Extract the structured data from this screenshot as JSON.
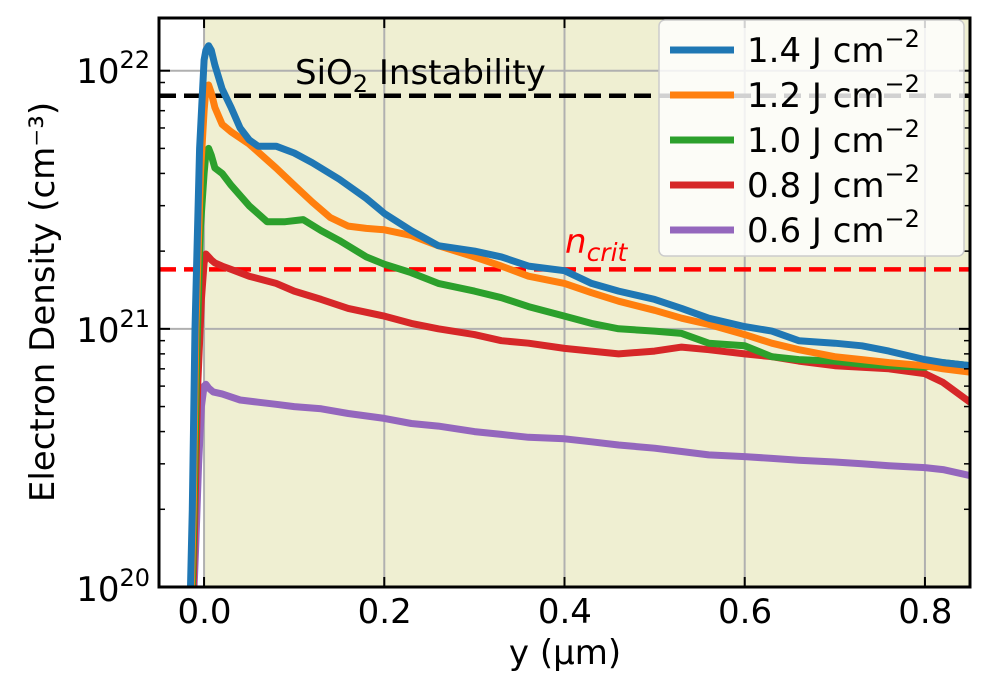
{
  "chart_data": {
    "type": "line",
    "xlabel": "y (µm)",
    "ylabel": "Electron Density (cm⁻³)",
    "xlim": [
      -0.05,
      0.85
    ],
    "ylim": [
      1e+20,
      1.6e+22
    ],
    "yscale": "log",
    "grid": true,
    "legend_position": "top-right",
    "x_ticks": [
      "0.0",
      "0.2",
      "0.4",
      "0.6",
      "0.8"
    ],
    "y_ticks": [
      {
        "base": "10",
        "exp": "20"
      },
      {
        "base": "10",
        "exp": "21"
      },
      {
        "base": "10",
        "exp": "22"
      }
    ],
    "shaded_region": {
      "x_from": 0.0,
      "x_to": 0.85,
      "color": "#efefd2"
    },
    "reference_lines": [
      {
        "y": 8e+21,
        "color": "#000000",
        "label": "SiO₂ Instability",
        "label_base": "SiO",
        "label_sub": "2",
        "label_rest": " Instability"
      },
      {
        "y": 1.7e+21,
        "color": "#ff0000",
        "label": "n_crit",
        "label_base": "n",
        "label_sub": "crit"
      }
    ],
    "series": [
      {
        "name": "1.4 J cm⁻²",
        "legend_base": "1.4 J cm",
        "legend_exp": "−2",
        "color": "#1f77b4",
        "x": [
          -0.015,
          -0.015,
          -0.013,
          -0.01,
          -0.005,
          0.0,
          0.002,
          0.005,
          0.008,
          0.012,
          0.02,
          0.03,
          0.04,
          0.05,
          0.06,
          0.08,
          0.1,
          0.12,
          0.15,
          0.18,
          0.2,
          0.23,
          0.26,
          0.3,
          0.33,
          0.36,
          0.4,
          0.43,
          0.46,
          0.5,
          0.53,
          0.56,
          0.6,
          0.63,
          0.66,
          0.7,
          0.73,
          0.76,
          0.8,
          0.82,
          0.85
        ],
        "y": [
          1e+20,
          1e+20,
          2e+20,
          1e+21,
          5e+21,
          1.1e+22,
          1.2e+22,
          1.25e+22,
          1.2e+22,
          1.05e+22,
          8.5e+21,
          7.2e+21,
          6e+21,
          5.4e+21,
          5.1e+21,
          5.1e+21,
          4.8e+21,
          4.4e+21,
          3.8e+21,
          3.2e+21,
          2.8e+21,
          2.4e+21,
          2.1e+21,
          2e+21,
          1.9e+21,
          1.75e+21,
          1.68e+21,
          1.5e+21,
          1.4e+21,
          1.3e+21,
          1.2e+21,
          1.1e+21,
          1.02e+21,
          9.8e+20,
          9e+20,
          8.8e+20,
          8.6e+20,
          8.2e+20,
          7.6e+20,
          7.4e+20,
          7.2e+20
        ]
      },
      {
        "name": "1.2 J cm⁻²",
        "legend_base": "1.2 J cm",
        "legend_exp": "−2",
        "color": "#ff7f0e",
        "x": [
          -0.014,
          -0.014,
          -0.012,
          -0.009,
          -0.004,
          0.0,
          0.002,
          0.005,
          0.008,
          0.012,
          0.02,
          0.03,
          0.05,
          0.08,
          0.1,
          0.12,
          0.14,
          0.16,
          0.18,
          0.2,
          0.23,
          0.26,
          0.3,
          0.33,
          0.36,
          0.4,
          0.43,
          0.46,
          0.5,
          0.53,
          0.56,
          0.6,
          0.63,
          0.66,
          0.7,
          0.73,
          0.76,
          0.8,
          0.82,
          0.85
        ],
        "y": [
          1e+20,
          1e+20,
          2e+20,
          1e+21,
          4e+21,
          7e+21,
          8.5e+21,
          8.8e+21,
          8.2e+21,
          7.2e+21,
          6.2e+21,
          5.8e+21,
          5.2e+21,
          4.2e+21,
          3.6e+21,
          3.1e+21,
          2.7e+21,
          2.5e+21,
          2.45e+21,
          2.42e+21,
          2.3e+21,
          2.1e+21,
          1.9e+21,
          1.75e+21,
          1.6e+21,
          1.5e+21,
          1.38e+21,
          1.28e+21,
          1.18e+21,
          1.1e+21,
          1.04e+21,
          9.5e+20,
          8.8e+20,
          8.3e+20,
          7.8e+20,
          7.6e+20,
          7.4e+20,
          7.2e+20,
          7e+20,
          6.8e+20
        ]
      },
      {
        "name": "1.0 J cm⁻²",
        "legend_base": "1.0 J cm",
        "legend_exp": "−2",
        "color": "#2ca02c",
        "x": [
          -0.013,
          -0.013,
          -0.011,
          -0.008,
          -0.004,
          0.0,
          0.002,
          0.005,
          0.008,
          0.012,
          0.02,
          0.03,
          0.05,
          0.07,
          0.09,
          0.11,
          0.13,
          0.15,
          0.18,
          0.2,
          0.23,
          0.26,
          0.3,
          0.33,
          0.36,
          0.4,
          0.43,
          0.46,
          0.5,
          0.53,
          0.56,
          0.6,
          0.63,
          0.66,
          0.7,
          0.73,
          0.76,
          0.8,
          0.82,
          0.85
        ],
        "y": [
          1e+20,
          1e+20,
          2e+20,
          8e+20,
          2.5e+21,
          4e+21,
          4.8e+21,
          5e+21,
          4.7e+21,
          4.2e+21,
          4e+21,
          3.6e+21,
          3e+21,
          2.6e+21,
          2.6e+21,
          2.65e+21,
          2.4e+21,
          2.2e+21,
          1.9e+21,
          1.78e+21,
          1.65e+21,
          1.5e+21,
          1.4e+21,
          1.32e+21,
          1.22e+21,
          1.12e+21,
          1.05e+21,
          1e+21,
          9.8e+20,
          9.6e+20,
          8.8e+20,
          8.6e+20,
          7.8e+20,
          7.6e+20,
          7.5e+20,
          7.3e+20,
          7.2e+20,
          7.1e+20,
          7.4e+20,
          7.2e+20
        ]
      },
      {
        "name": "0.8 J cm⁻²",
        "legend_base": "0.8 J cm",
        "legend_exp": "−2",
        "color": "#d62728",
        "x": [
          -0.012,
          -0.012,
          -0.01,
          -0.007,
          -0.003,
          0.0,
          0.002,
          0.005,
          0.008,
          0.012,
          0.02,
          0.03,
          0.05,
          0.08,
          0.1,
          0.13,
          0.16,
          0.2,
          0.23,
          0.26,
          0.3,
          0.33,
          0.36,
          0.4,
          0.43,
          0.46,
          0.5,
          0.53,
          0.56,
          0.6,
          0.63,
          0.66,
          0.7,
          0.73,
          0.76,
          0.8,
          0.82,
          0.85
        ],
        "y": [
          1e+20,
          1e+20,
          2e+20,
          6e+20,
          1.3e+21,
          1.8e+21,
          1.95e+21,
          1.9e+21,
          1.85e+21,
          1.8e+21,
          1.75e+21,
          1.7e+21,
          1.6e+21,
          1.5e+21,
          1.4e+21,
          1.3e+21,
          1.2e+21,
          1.12e+21,
          1.05e+21,
          1e+21,
          9.5e+20,
          9e+20,
          8.8e+20,
          8.4e+20,
          8.2e+20,
          8e+20,
          8.2e+20,
          8.5e+20,
          8.3e+20,
          8e+20,
          7.8e+20,
          7.5e+20,
          7.2e+20,
          7.1e+20,
          7e+20,
          6.7e+20,
          6.2e+20,
          5.2e+20
        ]
      },
      {
        "name": "0.6 J cm⁻²",
        "legend_base": "0.6 J cm",
        "legend_exp": "−2",
        "color": "#9467bd",
        "x": [
          -0.011,
          -0.011,
          -0.009,
          -0.006,
          -0.003,
          0.0,
          0.002,
          0.005,
          0.01,
          0.02,
          0.04,
          0.06,
          0.08,
          0.1,
          0.13,
          0.16,
          0.2,
          0.23,
          0.26,
          0.3,
          0.33,
          0.36,
          0.4,
          0.43,
          0.46,
          0.5,
          0.53,
          0.56,
          0.6,
          0.63,
          0.66,
          0.7,
          0.73,
          0.76,
          0.8,
          0.82,
          0.85
        ],
        "y": [
          1e+20,
          1e+20,
          1.5e+20,
          3e+20,
          5e+20,
          6e+20,
          6.1e+20,
          5.9e+20,
          5.7e+20,
          5.6e+20,
          5.3e+20,
          5.2e+20,
          5.1e+20,
          5e+20,
          4.9e+20,
          4.7e+20,
          4.5e+20,
          4.3e+20,
          4.2e+20,
          4e+20,
          3.9e+20,
          3.8e+20,
          3.75e+20,
          3.65e+20,
          3.55e+20,
          3.45e+20,
          3.35e+20,
          3.25e+20,
          3.2e+20,
          3.15e+20,
          3.1e+20,
          3.05e+20,
          3e+20,
          2.95e+20,
          2.9e+20,
          2.85e+20,
          2.7e+20
        ]
      }
    ]
  }
}
